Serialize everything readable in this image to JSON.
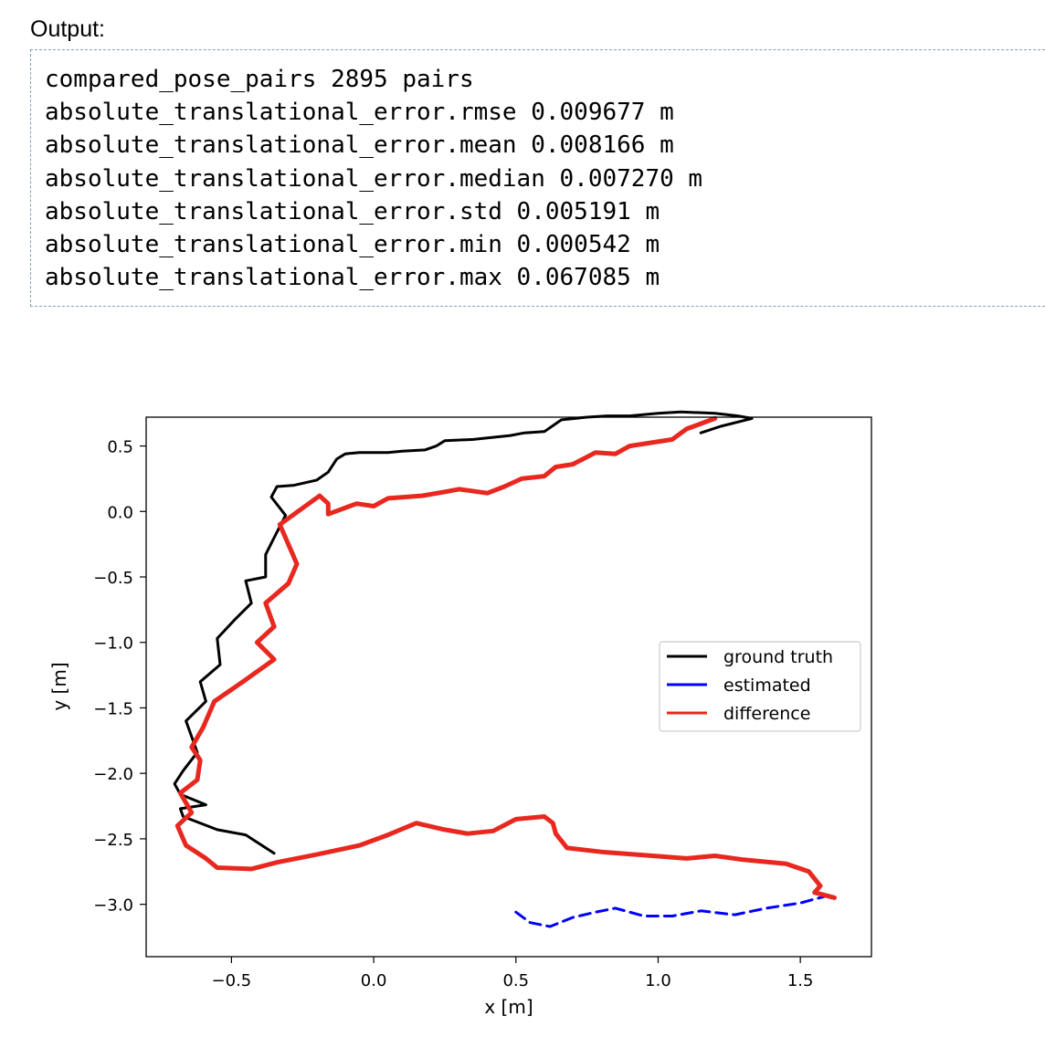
{
  "output_label": "Output:",
  "output_lines": [
    "compared_pose_pairs 2895 pairs",
    "absolute_translational_error.rmse 0.009677 m",
    "absolute_translational_error.mean 0.008166 m",
    "absolute_translational_error.median 0.007270 m",
    "absolute_translational_error.std 0.005191 m",
    "absolute_translational_error.min 0.000542 m",
    "absolute_translational_error.max 0.067085 m"
  ],
  "chart_data": {
    "type": "line",
    "title": "",
    "xlabel": "x [m]",
    "ylabel": "y [m]",
    "xlim": [
      -0.8,
      1.75
    ],
    "ylim": [
      -3.4,
      0.72
    ],
    "xticks": [
      -0.5,
      0.0,
      0.5,
      1.0,
      1.5
    ],
    "xtick_labels": [
      "−0.5",
      "0.0",
      "0.5",
      "1.0",
      "1.5"
    ],
    "yticks": [
      0.5,
      0.0,
      -0.5,
      -1.0,
      -1.5,
      -2.0,
      -2.5,
      -3.0
    ],
    "ytick_labels": [
      "0.5",
      "0.0",
      "−0.5",
      "−1.0",
      "−1.5",
      "−2.0",
      "−2.5",
      "−3.0"
    ],
    "grid": false,
    "legend_position": "center-right",
    "series": [
      {
        "name": "ground truth",
        "color": "#000000",
        "dash": "solid",
        "x": [
          -0.35,
          -0.45,
          -0.55,
          -0.67,
          -0.68,
          -0.59,
          -0.68,
          -0.7,
          -0.67,
          -0.62,
          -0.66,
          -0.59,
          -0.61,
          -0.54,
          -0.55,
          -0.49,
          -0.43,
          -0.45,
          -0.38,
          -0.38,
          -0.35,
          -0.31,
          -0.36,
          -0.34,
          -0.28,
          -0.2,
          -0.16,
          -0.13,
          -0.1,
          -0.05,
          0.05,
          0.1,
          0.18,
          0.22,
          0.25,
          0.35,
          0.48,
          0.53,
          0.6,
          0.66,
          0.75,
          0.82,
          0.9,
          1.0,
          1.08,
          1.2,
          1.28,
          1.33,
          1.22,
          1.15
        ],
        "y": [
          -2.61,
          -2.47,
          -2.43,
          -2.33,
          -2.27,
          -2.24,
          -2.16,
          -2.08,
          -1.98,
          -1.84,
          -1.6,
          -1.45,
          -1.3,
          -1.17,
          -0.97,
          -0.83,
          -0.7,
          -0.53,
          -0.5,
          -0.33,
          -0.2,
          -0.03,
          0.11,
          0.19,
          0.2,
          0.24,
          0.3,
          0.4,
          0.44,
          0.45,
          0.45,
          0.46,
          0.47,
          0.5,
          0.54,
          0.55,
          0.58,
          0.6,
          0.61,
          0.7,
          0.72,
          0.73,
          0.73,
          0.75,
          0.76,
          0.75,
          0.73,
          0.71,
          0.65,
          0.6
        ]
      },
      {
        "name": "estimated",
        "color": "#0000ff",
        "dash": "dashed",
        "x": [
          0.5,
          0.55,
          0.62,
          0.7,
          0.78,
          0.85,
          0.95,
          1.05,
          1.15,
          1.27,
          1.38,
          1.5,
          1.62
        ],
        "y": [
          -3.06,
          -3.14,
          -3.17,
          -3.1,
          -3.06,
          -3.03,
          -3.09,
          -3.09,
          -3.05,
          -3.08,
          -3.03,
          -2.99,
          -2.92
        ]
      },
      {
        "name": "difference",
        "color": "#e8281f",
        "dash": "solid",
        "x": [
          1.2,
          1.1,
          1.05,
          0.9,
          0.85,
          0.78,
          0.7,
          0.64,
          0.6,
          0.52,
          0.46,
          0.4,
          0.3,
          0.25,
          0.17,
          0.05,
          0.0,
          -0.06,
          -0.16,
          -0.16,
          -0.19,
          -0.33,
          -0.27,
          -0.3,
          -0.38,
          -0.35,
          -0.41,
          -0.35,
          -0.46,
          -0.56,
          -0.58,
          -0.6,
          -0.64,
          -0.61,
          -0.62,
          -0.68,
          -0.64,
          -0.69,
          -0.66,
          -0.59,
          -0.55,
          -0.43,
          -0.34,
          -0.2,
          -0.05,
          0.05,
          0.15,
          0.25,
          0.33,
          0.42,
          0.5,
          0.6,
          0.63,
          0.64,
          0.68,
          0.8,
          0.98,
          1.1,
          1.2,
          1.3,
          1.45,
          1.53,
          1.57,
          1.55,
          1.62
        ],
        "y": [
          0.71,
          0.63,
          0.55,
          0.5,
          0.44,
          0.45,
          0.36,
          0.34,
          0.27,
          0.25,
          0.19,
          0.14,
          0.17,
          0.15,
          0.12,
          0.1,
          0.04,
          0.06,
          -0.02,
          0.06,
          0.12,
          -0.1,
          -0.4,
          -0.55,
          -0.7,
          -0.88,
          -1.0,
          -1.13,
          -1.3,
          -1.45,
          -1.55,
          -1.65,
          -1.8,
          -1.9,
          -2.05,
          -2.15,
          -2.3,
          -2.4,
          -2.55,
          -2.65,
          -2.72,
          -2.73,
          -2.68,
          -2.62,
          -2.55,
          -2.47,
          -2.38,
          -2.43,
          -2.46,
          -2.44,
          -2.35,
          -2.33,
          -2.38,
          -2.46,
          -2.57,
          -2.6,
          -2.63,
          -2.65,
          -2.63,
          -2.66,
          -2.69,
          -2.75,
          -2.86,
          -2.91,
          -2.95
        ]
      }
    ]
  }
}
